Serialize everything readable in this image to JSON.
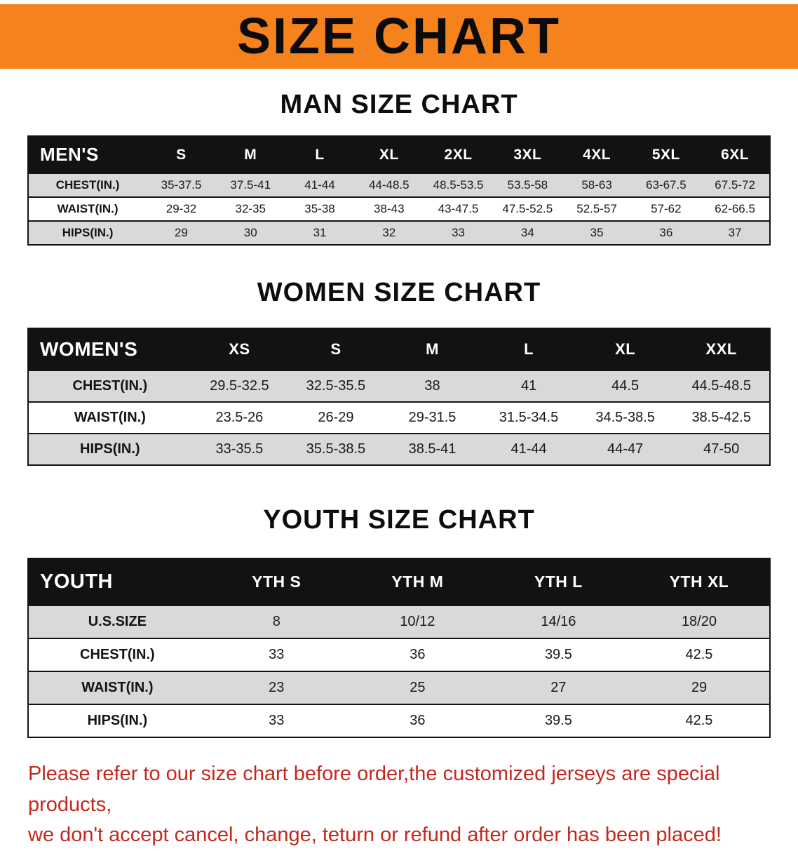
{
  "colors": {
    "banner_bg": "#f6821e",
    "header_bg": "#121212",
    "row_alt_bg": "#d9d9d9",
    "footer_text": "#c3281d"
  },
  "banner": {
    "title": "SIZE CHART"
  },
  "sections": [
    {
      "heading": "MAN SIZE CHART",
      "table": {
        "corner": "MEN'S",
        "columns": [
          "S",
          "M",
          "L",
          "XL",
          "2XL",
          "3XL",
          "4XL",
          "5XL",
          "6XL"
        ],
        "rows": [
          {
            "label": "CHEST(IN.)",
            "values": [
              "35-37.5",
              "37.5-41",
              "41-44",
              "44-48.5",
              "48.5-53.5",
              "53.5-58",
              "58-63",
              "63-67.5",
              "67.5-72"
            ]
          },
          {
            "label": "WAIST(IN.)",
            "values": [
              "29-32",
              "32-35",
              "35-38",
              "38-43",
              "43-47.5",
              "47.5-52.5",
              "52.5-57",
              "57-62",
              "62-66.5"
            ]
          },
          {
            "label": "HIPS(IN.)",
            "values": [
              "29",
              "30",
              "31",
              "32",
              "33",
              "34",
              "35",
              "36",
              "37"
            ]
          }
        ]
      }
    },
    {
      "heading": "WOMEN SIZE CHART",
      "table": {
        "corner": "WOMEN'S",
        "columns": [
          "XS",
          "S",
          "M",
          "L",
          "XL",
          "XXL"
        ],
        "rows": [
          {
            "label": "CHEST(IN.)",
            "values": [
              "29.5-32.5",
              "32.5-35.5",
              "38",
              "41",
              "44.5",
              "44.5-48.5"
            ]
          },
          {
            "label": "WAIST(IN.)",
            "values": [
              "23.5-26",
              "26-29",
              "29-31.5",
              "31.5-34.5",
              "34.5-38.5",
              "38.5-42.5"
            ]
          },
          {
            "label": "HIPS(IN.)",
            "values": [
              "33-35.5",
              "35.5-38.5",
              "38.5-41",
              "41-44",
              "44-47",
              "47-50"
            ]
          }
        ]
      }
    },
    {
      "heading": "YOUTH SIZE CHART",
      "table": {
        "corner": "YOUTH",
        "columns": [
          "YTH S",
          "YTH M",
          "YTH L",
          "YTH XL"
        ],
        "rows": [
          {
            "label": "U.S.SIZE",
            "values": [
              "8",
              "10/12",
              "14/16",
              "18/20"
            ]
          },
          {
            "label": "CHEST(IN.)",
            "values": [
              "33",
              "36",
              "39.5",
              "42.5"
            ]
          },
          {
            "label": "WAIST(IN.)",
            "values": [
              "23",
              "25",
              "27",
              "29"
            ]
          },
          {
            "label": "HIPS(IN.)",
            "values": [
              "33",
              "36",
              "39.5",
              "42.5"
            ]
          }
        ]
      }
    }
  ],
  "footer": {
    "line1": "Please refer to our size chart before order,the customized jerseys are special products,",
    "line2": "we don't accept cancel, change, teturn or refund after order has been placed!"
  }
}
